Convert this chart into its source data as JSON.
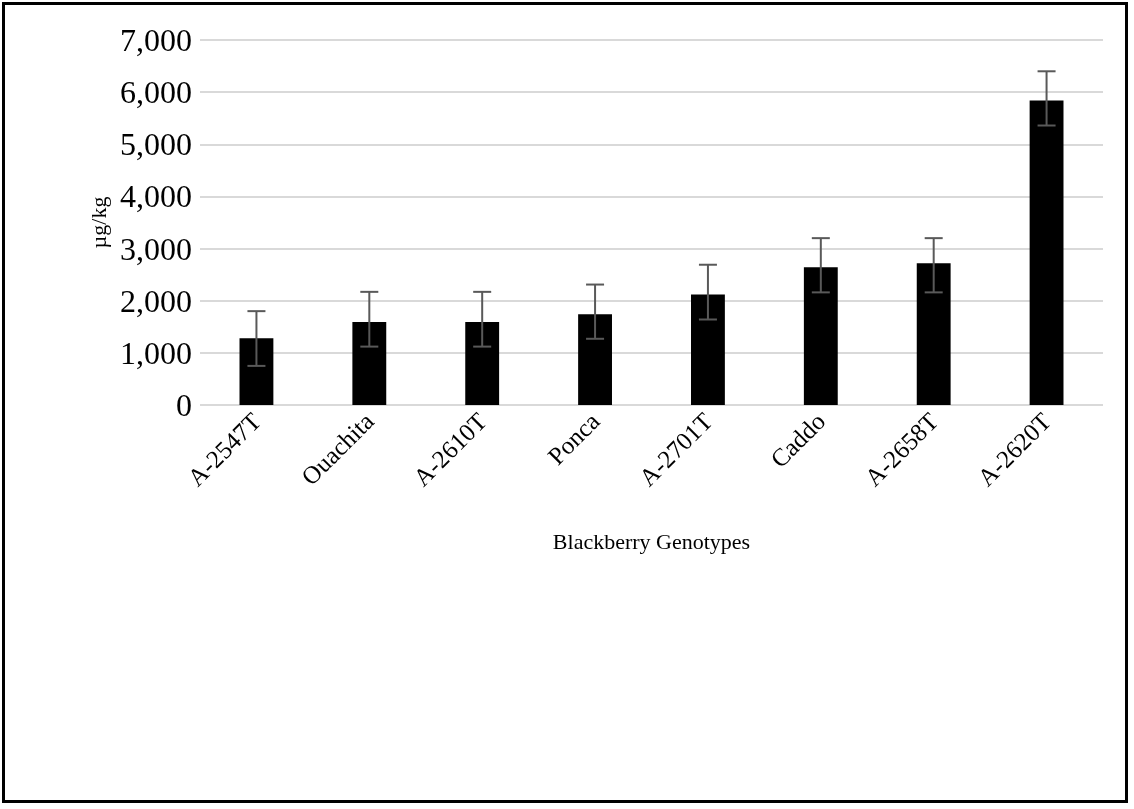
{
  "chart_data": {
    "type": "bar",
    "xlabel": "Blackberry Genotypes",
    "ylabel": "µg/kg",
    "categories": [
      "A-2547T",
      "Ouachita",
      "A-2610T",
      "Ponca",
      "A-2701T",
      "Caddo",
      "A-2658T",
      "A-2620T"
    ],
    "values": [
      1280,
      1590,
      1590,
      1740,
      2120,
      2640,
      2720,
      5840
    ],
    "errors": [
      [
        750,
        1800
      ],
      [
        1120,
        2170
      ],
      [
        1120,
        2170
      ],
      [
        1270,
        2310
      ],
      [
        1640,
        2690
      ],
      [
        2160,
        3200
      ],
      [
        2160,
        3200
      ],
      [
        5360,
        6400
      ]
    ],
    "color": "#000000",
    "ylim": [
      0,
      7000
    ],
    "yticks": [
      {
        "value": 0,
        "label": "0"
      },
      {
        "value": 1000,
        "label": "1,000"
      },
      {
        "value": 2000,
        "label": "2,000"
      },
      {
        "value": 3000,
        "label": "3,000"
      },
      {
        "value": 4000,
        "label": "4,000"
      },
      {
        "value": 5000,
        "label": "5,000"
      },
      {
        "value": 6000,
        "label": "6,000"
      },
      {
        "value": 7000,
        "label": "7,000"
      }
    ],
    "grid": "y"
  }
}
